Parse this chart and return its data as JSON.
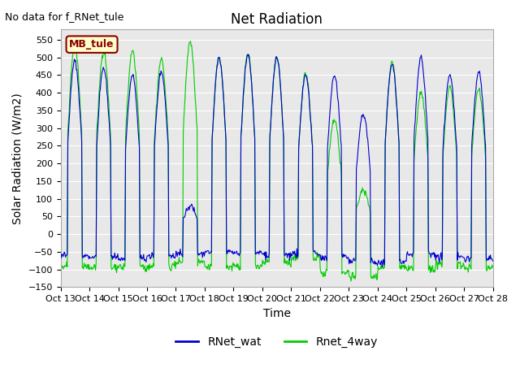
{
  "title": "Net Radiation",
  "xlabel": "Time",
  "ylabel": "Solar Radiation (W/m2)",
  "note": "No data for f_RNet_tule",
  "legend_label": "MB_tule",
  "ylim": [
    -150,
    580
  ],
  "yticks": [
    -150,
    -100,
    -50,
    0,
    50,
    100,
    150,
    200,
    250,
    300,
    350,
    400,
    450,
    500,
    550
  ],
  "xtick_labels": [
    "Oct 13",
    "Oct 14",
    "Oct 15",
    "Oct 16",
    "Oct 17",
    "Oct 18",
    "Oct 19",
    "Oct 20",
    "Oct 21",
    "Oct 22",
    "Oct 23",
    "Oct 24",
    "Oct 25",
    "Oct 26",
    "Oct 27",
    "Oct 28"
  ],
  "line1_color": "#0000cc",
  "line2_color": "#00cc00",
  "bg_color": "#e8e8e8",
  "series1_name": "RNet_wat",
  "series2_name": "Rnet_4way",
  "blue_peaks": [
    490,
    470,
    450,
    460,
    80,
    500,
    510,
    500,
    450,
    450,
    340,
    480,
    500,
    450,
    460
  ],
  "green_peaks": [
    535,
    520,
    520,
    495,
    545,
    500,
    510,
    500,
    455,
    320,
    125,
    485,
    400,
    415,
    410
  ],
  "blue_night": [
    -60,
    -65,
    -70,
    -60,
    -55,
    -50,
    -55,
    -60,
    -55,
    -65,
    -80,
    -80,
    -55,
    -65,
    -70
  ],
  "green_night": [
    -90,
    -95,
    -95,
    -90,
    -80,
    -95,
    -95,
    -80,
    -65,
    -110,
    -120,
    -95,
    -100,
    -85,
    -95
  ]
}
